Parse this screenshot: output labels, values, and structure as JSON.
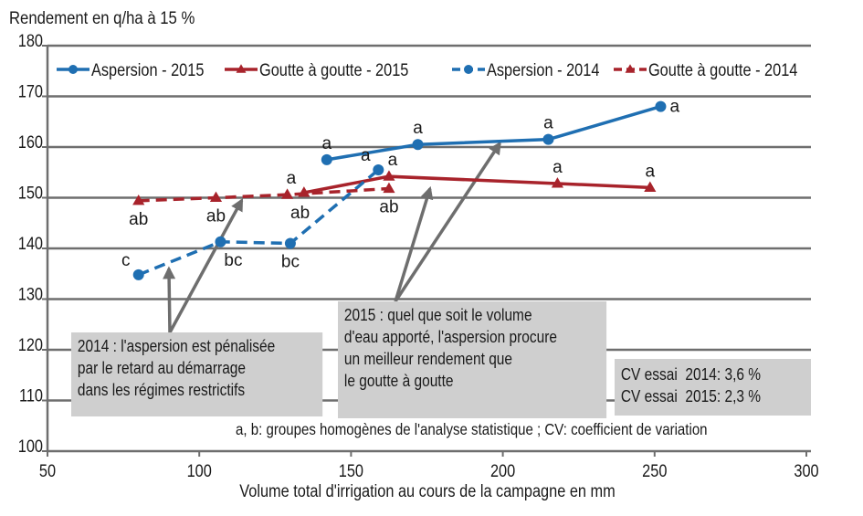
{
  "chart_data": {
    "type": "line",
    "title": "Rendement en q/ha à 15 %",
    "ylabel": "Rendement en q/ha à 15 %",
    "xlabel": "Volume total d'irrigation au cours de la campagne en mm",
    "xlim": [
      50,
      300
    ],
    "ylim": [
      100,
      180
    ],
    "x_ticks": [
      50,
      100,
      150,
      200,
      250,
      300
    ],
    "y_ticks": [
      100,
      110,
      120,
      130,
      140,
      150,
      160,
      170,
      180
    ],
    "grid": true,
    "legend_position": "top",
    "series": [
      {
        "name": "Aspersion - 2015",
        "color": "#1f6fb2",
        "marker": "circle",
        "line_style": "solid",
        "points": [
          {
            "x": 142,
            "y": 157.5,
            "label": "a",
            "label_pos": "above"
          },
          {
            "x": 172,
            "y": 160.5,
            "label": "a",
            "label_pos": "above"
          },
          {
            "x": 215,
            "y": 161.5,
            "label": "a",
            "label_pos": "above"
          },
          {
            "x": 252,
            "y": 168,
            "label": "a",
            "label_pos": "right"
          }
        ]
      },
      {
        "name": "Goutte à goutte - 2015",
        "color": "#a8232b",
        "marker": "triangle",
        "line_style": "solid",
        "points": [
          {
            "x": 134.5,
            "y": 151,
            "label": "a",
            "label_pos": "above-left"
          },
          {
            "x": 162.5,
            "y": 154.2,
            "label": "a",
            "label_pos": "above-right"
          },
          {
            "x": 218,
            "y": 152.8,
            "label": "a",
            "label_pos": "above"
          },
          {
            "x": 248.5,
            "y": 152,
            "label": "a",
            "label_pos": "above"
          }
        ]
      },
      {
        "name": "Aspersion - 2014",
        "color": "#1f6fb2",
        "marker": "circle",
        "line_style": "dashed",
        "points": [
          {
            "x": 80,
            "y": 134.8,
            "label": "c",
            "label_pos": "above-left"
          },
          {
            "x": 107,
            "y": 141.3,
            "label": "bc",
            "label_pos": "below-right"
          },
          {
            "x": 130,
            "y": 141,
            "label": "bc",
            "label_pos": "below"
          },
          {
            "x": 159,
            "y": 155.5,
            "label": "a",
            "label_pos": "above-left"
          }
        ]
      },
      {
        "name": "Goutte à goutte - 2014",
        "color": "#a8232b",
        "marker": "triangle",
        "line_style": "dashed",
        "points": [
          {
            "x": 80,
            "y": 149.4,
            "label": "ab",
            "label_pos": "below"
          },
          {
            "x": 105.5,
            "y": 150,
            "label": "ab",
            "label_pos": "below"
          },
          {
            "x": 129,
            "y": 150.6,
            "label": "ab",
            "label_pos": "below-right"
          },
          {
            "x": 162.5,
            "y": 151.8,
            "label": "ab",
            "label_pos": "below"
          }
        ]
      }
    ],
    "annotations": [
      {
        "id": "note-2014",
        "lines": [
          "2014 : l'aspersion est pénalisée",
          "par le retard au démarrage",
          "dans les régimes restrictifs"
        ],
        "arrows_to": [
          {
            "x": 90,
            "y": 136
          },
          {
            "x": 114,
            "y": 149.5
          }
        ]
      },
      {
        "id": "note-2015",
        "lines": [
          "2015 : quel que soit le volume",
          "d'eau apporté, l'aspersion procure",
          "un meilleur rendement que",
          "le goutte à goutte"
        ],
        "arrows_to": [
          {
            "x": 176,
            "y": 151.8
          },
          {
            "x": 199,
            "y": 160.7
          }
        ]
      },
      {
        "id": "note-cv",
        "lines": [
          "CV essai  2014: 3,6 %",
          "CV essai  2015: 2,3 %"
        ]
      }
    ],
    "footnote": "a, b: groupes homogènes de l'analyse statistique ; CV: coefficient de variation"
  }
}
